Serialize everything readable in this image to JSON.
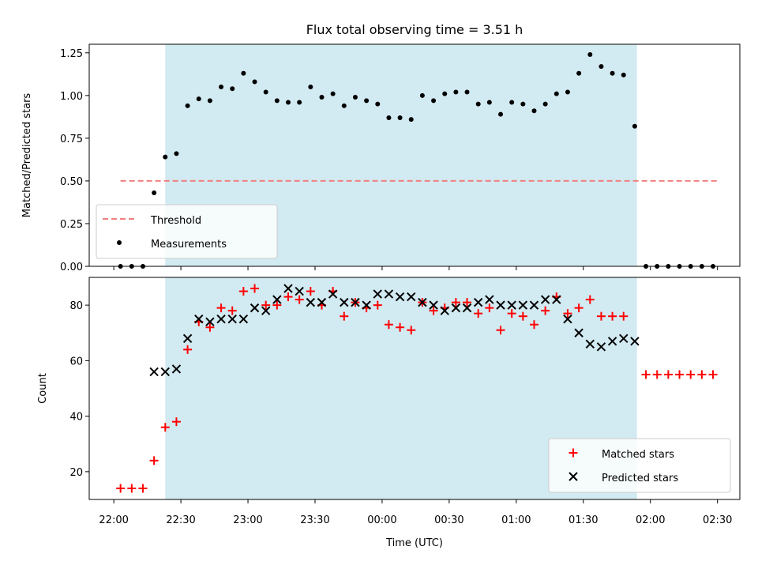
{
  "title": "Flux total observing time = 3.51 h",
  "colors": {
    "shade": "#add8e6",
    "threshold": "#f08080",
    "measurement": "#000000",
    "matched": "#ff0000",
    "predicted": "#000000"
  },
  "chart_data": [
    {
      "type": "scatter",
      "ylabel": "Matched/Predicted stars",
      "ylim": [
        0,
        1.3
      ],
      "yticks": [
        0,
        0.25,
        0.5,
        0.75,
        1.0,
        1.25
      ],
      "ytick_labels": [
        "0.00",
        "0.25",
        "0.50",
        "0.75",
        "1.00",
        "1.25"
      ],
      "legend": {
        "placement": "lower-left",
        "entries": [
          "Threshold",
          "Measurements"
        ]
      },
      "threshold": {
        "name": "Threshold",
        "y": 0.5,
        "x_from": "22:03",
        "x_to": "02:30"
      },
      "shaded_interval": {
        "from": "22:23",
        "to": "01:54"
      },
      "series": [
        {
          "name": "Measurements",
          "x": [
            "22:03",
            "22:08",
            "22:13",
            "22:18",
            "22:23",
            "22:28",
            "22:33",
            "22:38",
            "22:43",
            "22:48",
            "22:53",
            "22:58",
            "23:03",
            "23:08",
            "23:13",
            "23:18",
            "23:23",
            "23:28",
            "23:33",
            "23:38",
            "23:43",
            "23:48",
            "23:53",
            "23:58",
            "00:03",
            "00:08",
            "00:13",
            "00:18",
            "00:23",
            "00:28",
            "00:33",
            "00:38",
            "00:43",
            "00:48",
            "00:53",
            "00:58",
            "01:03",
            "01:08",
            "01:13",
            "01:18",
            "01:23",
            "01:28",
            "01:33",
            "01:38",
            "01:43",
            "01:48",
            "01:53",
            "01:58",
            "02:03",
            "02:08",
            "02:13",
            "02:18",
            "02:23",
            "02:28"
          ],
          "values": [
            0,
            0,
            0,
            0.43,
            0.64,
            0.66,
            0.94,
            0.98,
            0.97,
            1.05,
            1.04,
            1.13,
            1.08,
            1.02,
            0.97,
            0.96,
            0.96,
            1.05,
            0.99,
            1.01,
            0.94,
            0.99,
            0.97,
            0.95,
            0.87,
            0.87,
            0.86,
            1.0,
            0.97,
            1.01,
            1.02,
            1.02,
            0.95,
            0.96,
            0.89,
            0.96,
            0.95,
            0.91,
            0.95,
            1.01,
            1.02,
            1.13,
            1.24,
            1.17,
            1.13,
            1.12,
            0.82,
            0,
            0,
            0,
            0,
            0,
            0,
            0
          ]
        }
      ]
    },
    {
      "type": "scatter",
      "ylabel": "Count",
      "xlabel": "Time (UTC)",
      "ylim": [
        10,
        90
      ],
      "yticks": [
        20,
        40,
        60,
        80
      ],
      "ytick_labels": [
        "20",
        "40",
        "60",
        "80"
      ],
      "xticks": [
        "22:00",
        "22:30",
        "23:00",
        "23:30",
        "00:00",
        "00:30",
        "01:00",
        "01:30",
        "02:00",
        "02:30"
      ],
      "xlim": [
        "21:49",
        "02:40"
      ],
      "legend": {
        "placement": "lower-right",
        "entries": [
          "Matched stars",
          "Predicted stars"
        ]
      },
      "shaded_interval": {
        "from": "22:23",
        "to": "01:54"
      },
      "series": [
        {
          "name": "Matched stars",
          "marker": "+",
          "x": [
            "22:03",
            "22:08",
            "22:13",
            "22:18",
            "22:23",
            "22:28",
            "22:33",
            "22:38",
            "22:43",
            "22:48",
            "22:53",
            "22:58",
            "23:03",
            "23:08",
            "23:13",
            "23:18",
            "23:23",
            "23:28",
            "23:33",
            "23:38",
            "23:43",
            "23:48",
            "23:53",
            "23:58",
            "00:03",
            "00:08",
            "00:13",
            "00:18",
            "00:23",
            "00:28",
            "00:33",
            "00:38",
            "00:43",
            "00:48",
            "00:53",
            "00:58",
            "01:03",
            "01:08",
            "01:13",
            "01:18",
            "01:23",
            "01:28",
            "01:33",
            "01:38",
            "01:43",
            "01:48",
            "01:53",
            "01:58",
            "02:03",
            "02:08",
            "02:13",
            "02:18",
            "02:23",
            "02:28"
          ],
          "values": [
            14,
            14,
            14,
            24,
            36,
            38,
            64,
            74,
            72,
            79,
            78,
            85,
            86,
            80,
            80,
            83,
            82,
            85,
            80,
            85,
            76,
            81,
            79,
            80,
            73,
            72,
            71,
            81,
            78,
            79,
            81,
            81,
            77,
            79,
            71,
            77,
            76,
            73,
            78,
            83,
            77,
            79,
            82,
            76,
            76,
            76,
            null,
            55,
            55,
            55,
            55,
            55,
            55,
            55
          ]
        },
        {
          "name": "Predicted stars",
          "marker": "x",
          "x": [
            "22:18",
            "22:23",
            "22:28",
            "22:33",
            "22:38",
            "22:43",
            "22:48",
            "22:53",
            "22:58",
            "23:03",
            "23:08",
            "23:13",
            "23:18",
            "23:23",
            "23:28",
            "23:33",
            "23:38",
            "23:43",
            "23:48",
            "23:53",
            "23:58",
            "00:03",
            "00:08",
            "00:13",
            "00:18",
            "00:23",
            "00:28",
            "00:33",
            "00:38",
            "00:43",
            "00:48",
            "00:53",
            "00:58",
            "01:03",
            "01:08",
            "01:13",
            "01:18",
            "01:23",
            "01:28",
            "01:33",
            "01:38",
            "01:43",
            "01:48",
            "01:53"
          ],
          "values": [
            56,
            56,
            57,
            68,
            75,
            74,
            75,
            75,
            75,
            79,
            78,
            82,
            86,
            85,
            81,
            81,
            84,
            81,
            81,
            80,
            84,
            84,
            83,
            83,
            81,
            80,
            78,
            79,
            79,
            81,
            82,
            80,
            80,
            80,
            80,
            82,
            82,
            75,
            70,
            66,
            65,
            67,
            68,
            67
          ]
        }
      ]
    }
  ]
}
